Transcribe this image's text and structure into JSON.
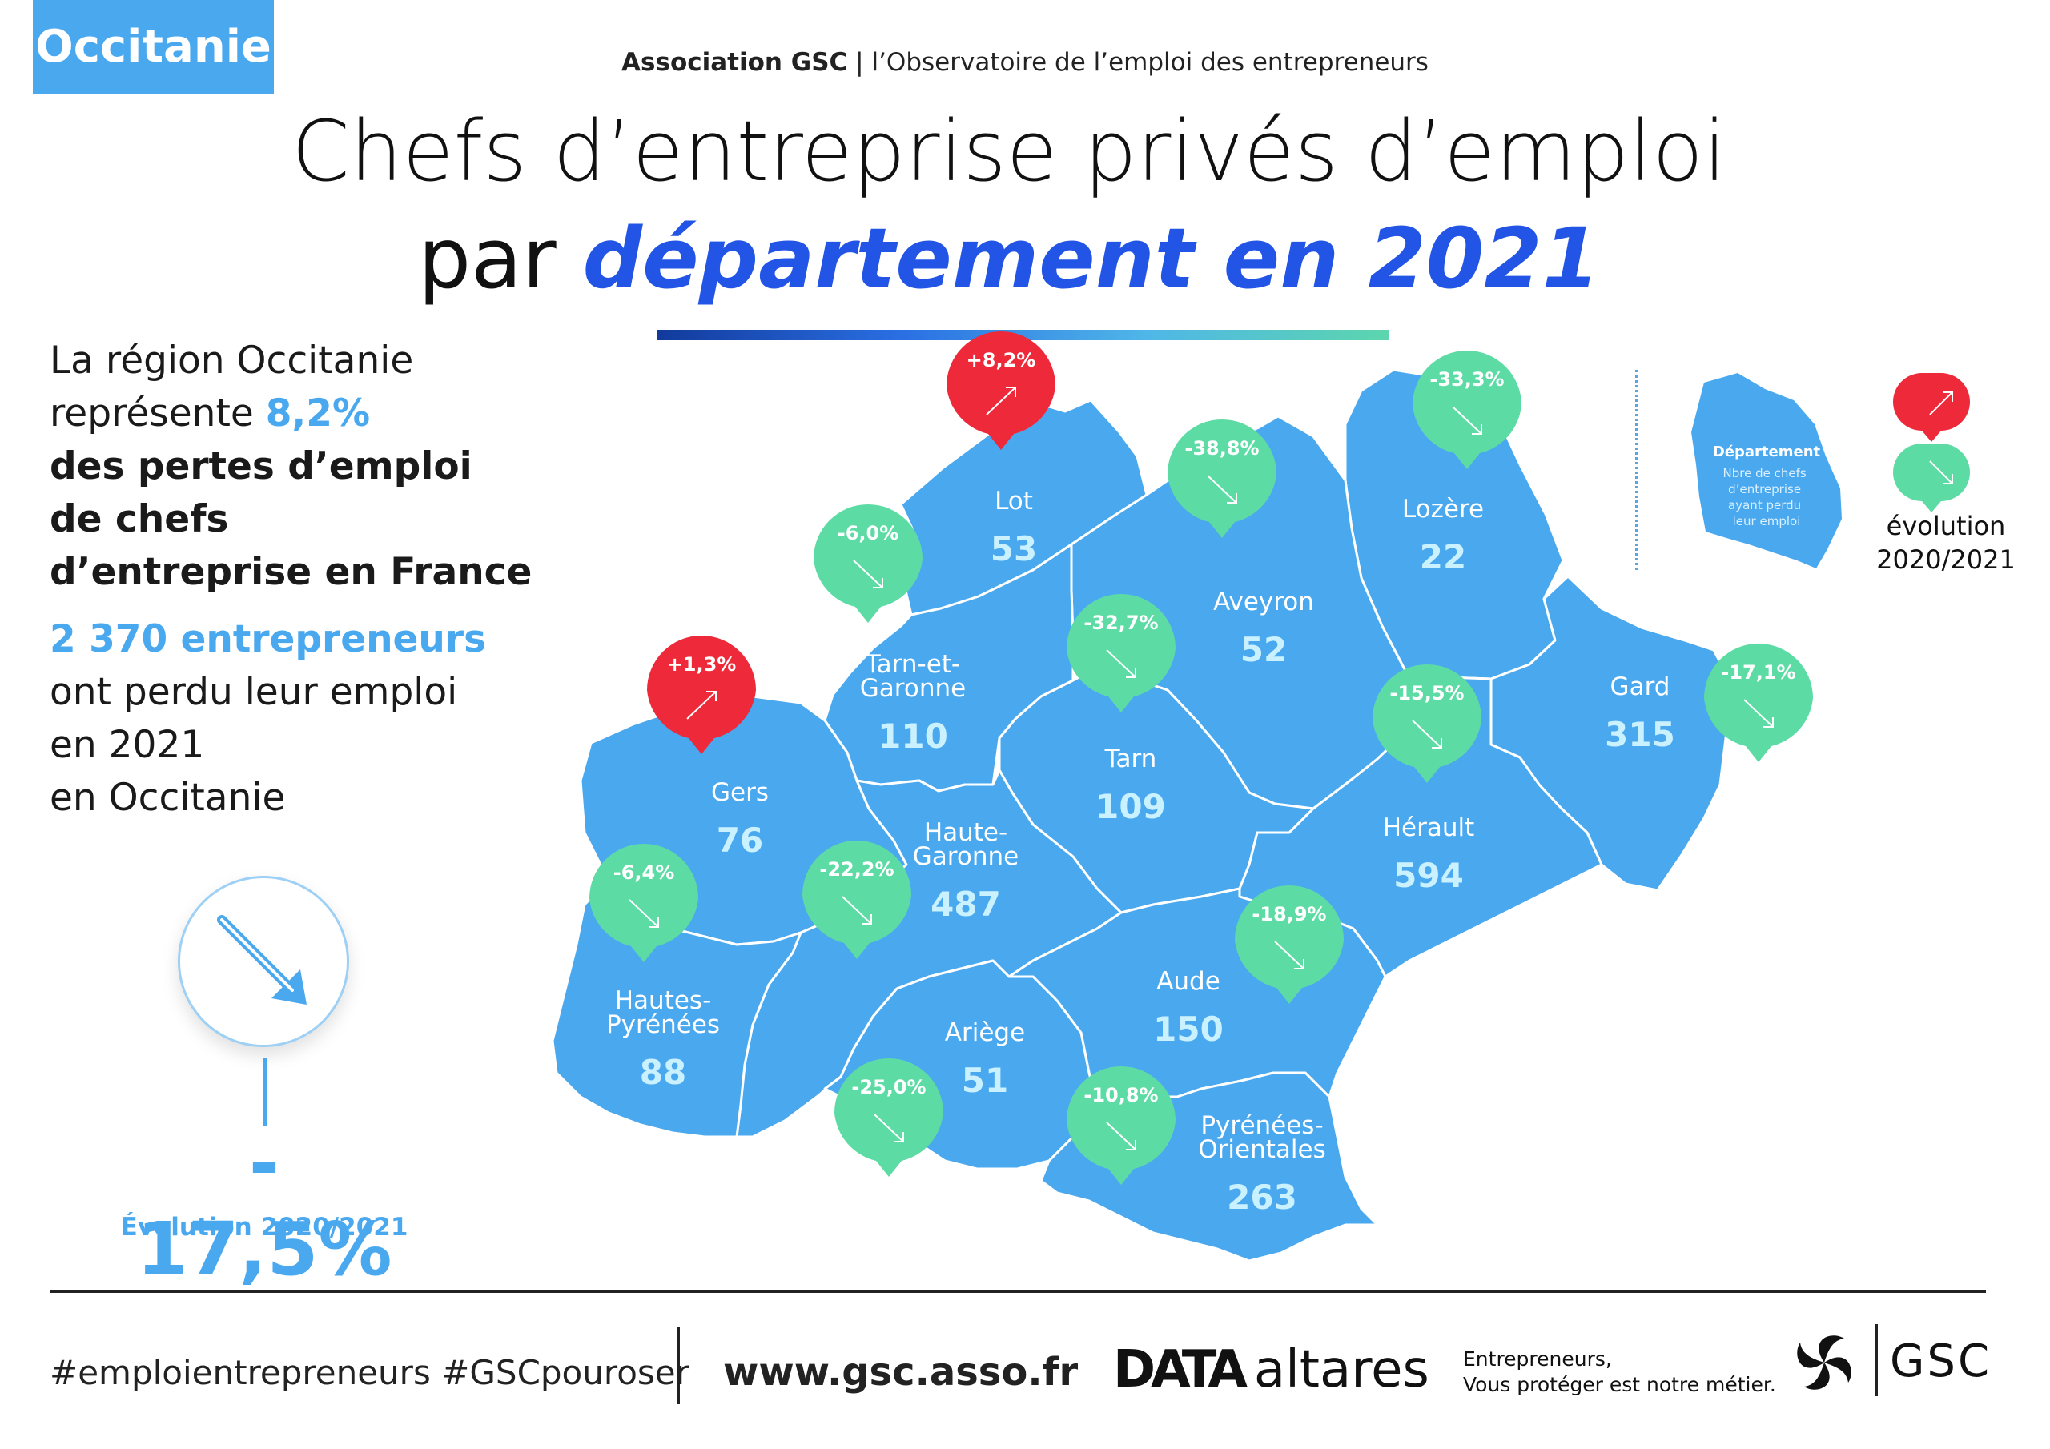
{
  "header": {
    "region_tag": "Occitanie",
    "association": "Association GSC",
    "association_sub": "| l’Observatoire de l’emploi des entrepreneurs",
    "title_line1": "Chefs d’entreprise privés d’emploi",
    "title_line2_plain": "par ",
    "title_line2_highlight": "département en 2021"
  },
  "summary": {
    "line1": "La région Occitanie",
    "line2_prefix": "représente ",
    "line2_percent": "8,2%",
    "line3": "des pertes d’emploi",
    "line4": "de chefs",
    "line5": "d’entreprise en France",
    "count_line": "2 370 entrepreneurs",
    "line7": "ont perdu leur emploi",
    "line8": "en 2021",
    "line9": "en Occitanie"
  },
  "overall_evolution": {
    "value": "- 17,5%",
    "label": "Évolution 2020/2021",
    "direction": "down"
  },
  "legend": {
    "map_label_title": "Département",
    "map_label_text": "Nbre de chefs d’entreprise ayant perdu leur emploi",
    "evolution_label_1": "évolution",
    "evolution_label_2": "2020/2021",
    "color_up": "#ee2a3a",
    "color_down": "#5ddba5"
  },
  "colors": {
    "map_fill": "#4aa8ef",
    "value_text": "#c9f1ff",
    "accent_blue": "#2254e6",
    "brand_blue": "#4aa8ef"
  },
  "departments": [
    {
      "name": "Lot",
      "value": "53",
      "evolution": "+8,2%",
      "direction": "up"
    },
    {
      "name": "Lozère",
      "value": "22",
      "evolution": "-33,3%",
      "direction": "down"
    },
    {
      "name": "Aveyron",
      "value": "52",
      "evolution": "-38,8%",
      "direction": "down"
    },
    {
      "name": "Tarn-et-Garonne",
      "value": "110",
      "evolution": "-6,0%",
      "direction": "down"
    },
    {
      "name": "Gers",
      "value": "76",
      "evolution": "+1,3%",
      "direction": "up"
    },
    {
      "name": "Tarn",
      "value": "109",
      "evolution": "-32,7%",
      "direction": "down"
    },
    {
      "name": "Gard",
      "value": "315",
      "evolution": "-17,1%",
      "direction": "down"
    },
    {
      "name": "Hérault",
      "value": "594",
      "evolution": "-15,5%",
      "direction": "down"
    },
    {
      "name": "Haute-Garonne",
      "value": "487",
      "evolution": "-22,2%",
      "direction": "down"
    },
    {
      "name": "Hautes-Pyrénées",
      "value": "88",
      "evolution": "-6,4%",
      "direction": "down"
    },
    {
      "name": "Aude",
      "value": "150",
      "evolution": "-18,9%",
      "direction": "down"
    },
    {
      "name": "Ariège",
      "value": "51",
      "evolution": "-25,0%",
      "direction": "down"
    },
    {
      "name": "Pyrénées-Orientales",
      "value": "263",
      "evolution": "-10,8%",
      "direction": "down"
    }
  ],
  "footer": {
    "hashtags": "#emploientrepreneurs #GSCpouroser",
    "website": "www.gsc.asso.fr",
    "partner_prefix": "DATA",
    "partner_name": "altares",
    "tagline_1": "Entrepreneurs,",
    "tagline_2": "Vous protéger est notre métier.",
    "brand": "GSC"
  }
}
